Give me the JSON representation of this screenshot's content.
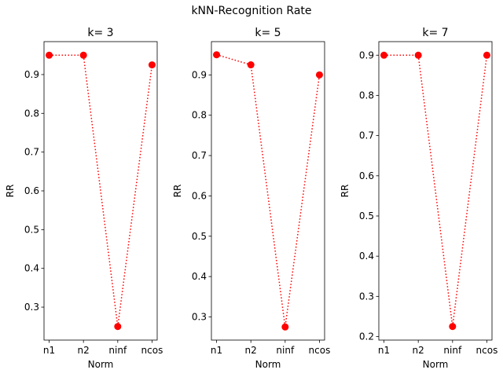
{
  "title": "kNN-Recognition Rate",
  "chart_data": [
    {
      "type": "line",
      "title": "k= 3",
      "xlabel": "Norm",
      "ylabel": "RR",
      "categories": [
        "n1",
        "n2",
        "ninf",
        "ncos"
      ],
      "values": [
        0.95,
        0.95,
        0.25,
        0.925
      ],
      "ylim": [
        0.215,
        0.985
      ],
      "yticks": [
        0.3,
        0.4,
        0.5,
        0.6,
        0.7,
        0.8,
        0.9
      ],
      "ytick_labels": [
        "0.3",
        "0.4",
        "0.5",
        "0.6",
        "0.7",
        "0.8",
        "0.9"
      ],
      "line_style": "dotted",
      "marker": "circle",
      "color": "#ff0000",
      "grid": false
    },
    {
      "type": "line",
      "title": "k= 5",
      "xlabel": "Norm",
      "ylabel": "RR",
      "categories": [
        "n1",
        "n2",
        "ninf",
        "ncos"
      ],
      "values": [
        0.95,
        0.925,
        0.275,
        0.9
      ],
      "ylim": [
        0.2425,
        0.9825
      ],
      "yticks": [
        0.3,
        0.4,
        0.5,
        0.6,
        0.7,
        0.8,
        0.9
      ],
      "ytick_labels": [
        "0.3",
        "0.4",
        "0.5",
        "0.6",
        "0.7",
        "0.8",
        "0.9"
      ],
      "line_style": "dotted",
      "marker": "circle",
      "color": "#ff0000",
      "grid": false
    },
    {
      "type": "line",
      "title": "k= 7",
      "xlabel": "Norm",
      "ylabel": "RR",
      "categories": [
        "n1",
        "n2",
        "ninf",
        "ncos"
      ],
      "values": [
        0.9,
        0.9,
        0.225,
        0.9
      ],
      "ylim": [
        0.19125,
        0.93375
      ],
      "yticks": [
        0.2,
        0.3,
        0.4,
        0.5,
        0.6,
        0.7,
        0.8,
        0.9
      ],
      "ytick_labels": [
        "0.2",
        "0.3",
        "0.4",
        "0.5",
        "0.6",
        "0.7",
        "0.8",
        "0.9"
      ],
      "line_style": "dotted",
      "marker": "circle",
      "color": "#ff0000",
      "grid": false
    }
  ]
}
